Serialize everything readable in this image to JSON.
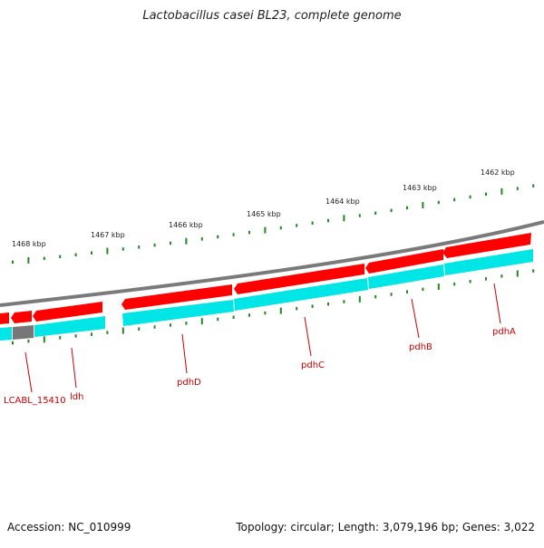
{
  "title": "Lactobacillus casei BL23, complete genome",
  "accession": "Accession: NC_010999",
  "summary": "Topology: circular; Length: 3,079,196 bp; Genes: 3,022",
  "scale_labels": [
    "1462 kbp",
    "1463 kbp",
    "1464 kbp",
    "1465 kbp",
    "1466 kbp",
    "1467 kbp",
    "1468 kbp"
  ],
  "gene_labels": [
    "pdhA",
    "pdhB",
    "pdhC",
    "pdhD",
    "ldh",
    "LCABL_15410"
  ],
  "colors": {
    "backbone": "#7a7a7a",
    "gene_arrow": "#ff0000",
    "cds_band": "#00e5e5",
    "other_feature": "#777777",
    "tick": "#228822",
    "label": "#cc0000"
  }
}
